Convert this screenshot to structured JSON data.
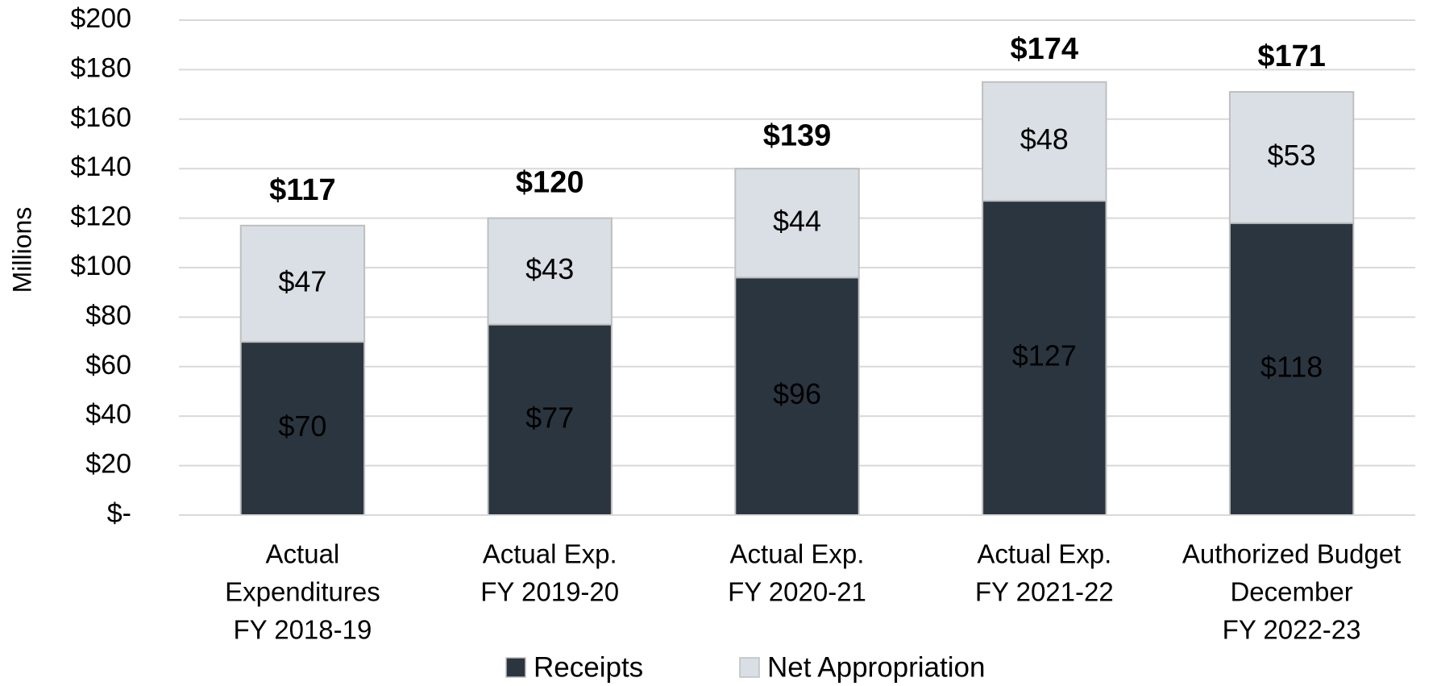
{
  "chart_data": {
    "type": "stacked_bar",
    "ylabel": "Millions",
    "categories": [
      [
        "Actual",
        "Expenditures",
        "FY 2018-19"
      ],
      [
        "Actual Exp.",
        "FY 2019-20"
      ],
      [
        "Actual Exp.",
        "FY 2020-21"
      ],
      [
        "Actual Exp.",
        "FY 2021-22"
      ],
      [
        "Authorized Budget",
        "December",
        "FY 2022-23"
      ]
    ],
    "series": [
      {
        "name": "Receipts",
        "color": "#2b3540",
        "label_color": "#ffffff",
        "values": [
          70,
          77,
          96,
          127,
          118
        ],
        "value_labels": [
          "$70",
          "$77",
          "$96",
          "$127",
          "$118"
        ]
      },
      {
        "name": "Net Appropriation",
        "color": "#d9dfe5",
        "label_color": "#000000",
        "values": [
          47,
          43,
          44,
          48,
          53
        ],
        "value_labels": [
          "$47",
          "$43",
          "$44",
          "$48",
          "$53"
        ]
      }
    ],
    "totals": {
      "values": [
        117,
        120,
        139,
        174,
        171
      ],
      "value_labels": [
        "$117",
        "$120",
        "$139",
        "$174",
        "$171"
      ]
    },
    "ylim": [
      0,
      200
    ],
    "yticks": [
      {
        "value": 0,
        "label": "$-"
      },
      {
        "value": 20,
        "label": "$20"
      },
      {
        "value": 40,
        "label": "$40"
      },
      {
        "value": 60,
        "label": "$60"
      },
      {
        "value": 80,
        "label": "$80"
      },
      {
        "value": 100,
        "label": "$100"
      },
      {
        "value": 120,
        "label": "$120"
      },
      {
        "value": 140,
        "label": "$140"
      },
      {
        "value": 160,
        "label": "$160"
      },
      {
        "value": 180,
        "label": "$180"
      },
      {
        "value": 200,
        "label": "$200"
      }
    ],
    "grid": true,
    "legend": "bottom"
  }
}
